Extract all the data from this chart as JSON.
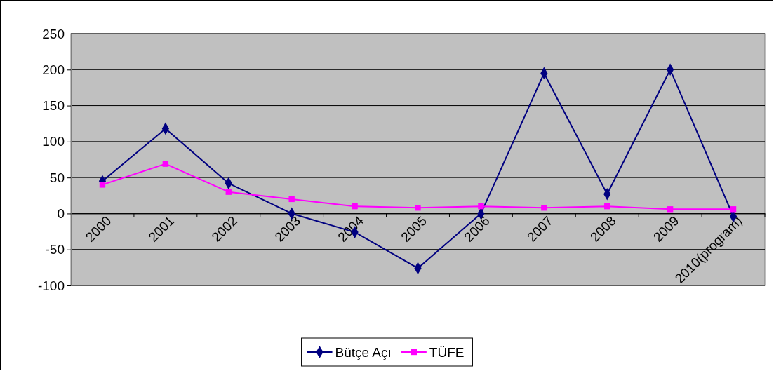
{
  "chart_data": {
    "type": "line",
    "categories": [
      "2000",
      "2001",
      "2002",
      "2003",
      "2004",
      "2005",
      "2006",
      "2007",
      "2008",
      "2009",
      "2010(program)"
    ],
    "series": [
      {
        "name": "Bütçe Açı",
        "color": "#000080",
        "marker": "diamond",
        "values": [
          45,
          118,
          42,
          0,
          -26,
          -76,
          0,
          195,
          27,
          200,
          -4
        ]
      },
      {
        "name": "TÜFE",
        "color": "#ff00ff",
        "marker": "square",
        "values": [
          40,
          69,
          30,
          20,
          10,
          8,
          10,
          8,
          10,
          6,
          6
        ]
      }
    ],
    "ylim": [
      -100,
      250
    ],
    "yticks": [
      -100,
      -50,
      0,
      50,
      100,
      150,
      200,
      250
    ],
    "grid": "y",
    "legend": "bottom"
  }
}
